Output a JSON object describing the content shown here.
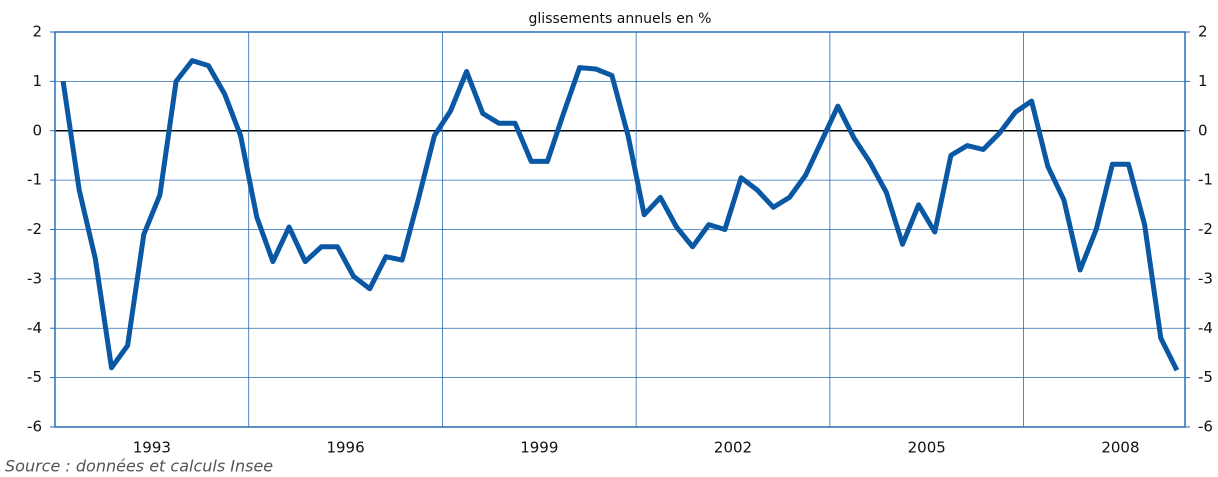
{
  "chart_data": {
    "type": "line",
    "title": "glissements annuels en %",
    "source": "Source : données et calculs Insee",
    "x": [
      1992.125,
      1992.375,
      1992.625,
      1992.875,
      1993.125,
      1993.375,
      1993.625,
      1993.875,
      1994.125,
      1994.375,
      1994.625,
      1994.875,
      1995.125,
      1995.375,
      1995.625,
      1995.875,
      1996.125,
      1996.375,
      1996.625,
      1996.875,
      1997.125,
      1997.375,
      1997.625,
      1997.875,
      1998.125,
      1998.375,
      1998.625,
      1998.875,
      1999.125,
      1999.375,
      1999.625,
      1999.875,
      2000.125,
      2000.375,
      2000.625,
      2000.875,
      2001.125,
      2001.375,
      2001.625,
      2001.875,
      2002.125,
      2002.375,
      2002.625,
      2002.875,
      2003.125,
      2003.375,
      2003.625,
      2003.875,
      2004.125,
      2004.375,
      2004.625,
      2004.875,
      2005.125,
      2005.375,
      2005.625,
      2005.875,
      2006.125,
      2006.375,
      2006.625,
      2006.875,
      2007.125,
      2007.375,
      2007.625,
      2007.875,
      2008.125,
      2008.375,
      2008.625,
      2008.875,
      2009.125,
      2009.375
    ],
    "values": [
      1.0,
      -1.2,
      -2.6,
      -4.8,
      -4.35,
      -2.1,
      -1.3,
      1.0,
      1.42,
      1.32,
      0.75,
      -0.1,
      -1.75,
      -2.65,
      -1.95,
      -2.65,
      -2.35,
      -2.35,
      -2.95,
      -3.2,
      -2.55,
      -2.62,
      -1.4,
      -0.1,
      0.4,
      1.2,
      0.35,
      0.15,
      0.15,
      -0.62,
      -0.62,
      0.35,
      1.28,
      1.25,
      1.12,
      -0.1,
      -1.7,
      -1.35,
      -1.95,
      -2.35,
      -1.9,
      -2.0,
      -0.95,
      -1.2,
      -1.55,
      -1.35,
      -0.9,
      -0.2,
      0.5,
      -0.15,
      -0.65,
      -1.25,
      -2.3,
      -1.5,
      -2.05,
      -0.5,
      -0.3,
      -0.38,
      -0.05,
      0.38,
      0.6,
      -0.72,
      -1.4,
      -2.82,
      -2.0,
      -0.68,
      -0.68,
      -1.9,
      -4.2,
      -4.85
    ],
    "color": "#0a57a4",
    "xlim": [
      1992,
      2009.5
    ],
    "xticks": [
      {
        "value": 1993.5,
        "label": "1993"
      },
      {
        "value": 1996.5,
        "label": "1996"
      },
      {
        "value": 1999.5,
        "label": "1999"
      },
      {
        "value": 2002.5,
        "label": "2002"
      },
      {
        "value": 2005.5,
        "label": "2005"
      },
      {
        "value": 2008.5,
        "label": "2008"
      }
    ],
    "xgrid": [
      1995,
      1998,
      2001,
      2004,
      2007
    ],
    "ylim": [
      -6,
      2
    ],
    "yticks": [
      -6,
      -5,
      -4,
      -3,
      -2,
      -1,
      0,
      1,
      2
    ],
    "grid": true
  }
}
